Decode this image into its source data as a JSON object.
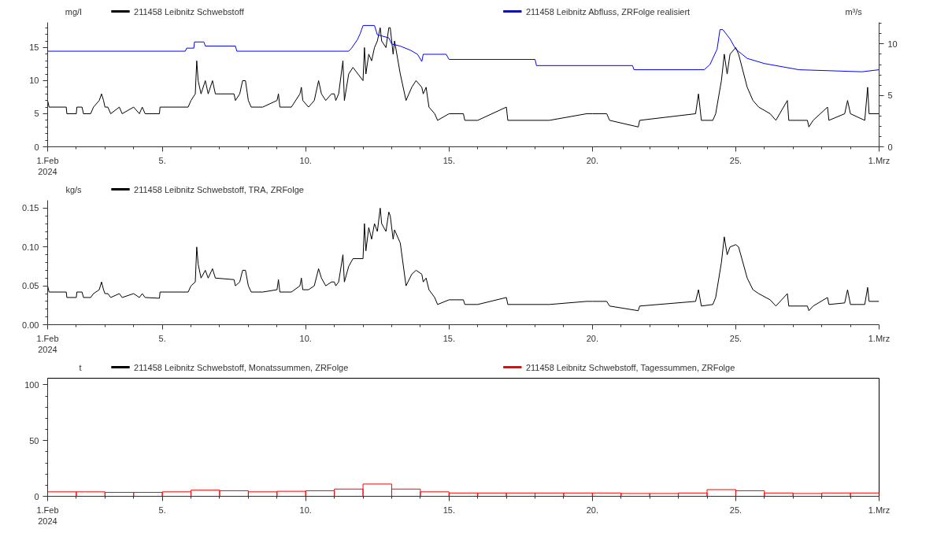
{
  "chart_data": [
    {
      "type": "line",
      "ylabel": "mg/l",
      "y2label": "m³/s",
      "legend": "top",
      "xlim": [
        "2024-02-01",
        "2024-03-01"
      ],
      "ylim": [
        0,
        18.8
      ],
      "y2lim": [
        0,
        12.1
      ],
      "xticks": [
        {
          "value": "2024-02-01",
          "label": "1.Feb\n2024"
        },
        {
          "value": "2024-02-02",
          "label": null
        },
        {
          "value": "2024-02-03",
          "label": null
        },
        {
          "value": "2024-02-04",
          "label": null
        },
        {
          "value": "2024-02-05",
          "label": "5."
        },
        {
          "value": "2024-02-06",
          "label": null
        },
        {
          "value": "2024-02-07",
          "label": null
        },
        {
          "value": "2024-02-08",
          "label": null
        },
        {
          "value": "2024-02-09",
          "label": null
        },
        {
          "value": "2024-02-10",
          "label": "10."
        },
        {
          "value": "2024-02-11",
          "label": null
        },
        {
          "value": "2024-02-12",
          "label": null
        },
        {
          "value": "2024-02-13",
          "label": null
        },
        {
          "value": "2024-02-14",
          "label": null
        },
        {
          "value": "2024-02-15",
          "label": "15."
        },
        {
          "value": "2024-02-16",
          "label": null
        },
        {
          "value": "2024-02-17",
          "label": null
        },
        {
          "value": "2024-02-18",
          "label": null
        },
        {
          "value": "2024-02-19",
          "label": null
        },
        {
          "value": "2024-02-20",
          "label": "20."
        },
        {
          "value": "2024-02-21",
          "label": null
        },
        {
          "value": "2024-02-22",
          "label": null
        },
        {
          "value": "2024-02-23",
          "label": null
        },
        {
          "value": "2024-02-24",
          "label": null
        },
        {
          "value": "2024-02-25",
          "label": "25."
        },
        {
          "value": "2024-02-26",
          "label": null
        },
        {
          "value": "2024-02-27",
          "label": null
        },
        {
          "value": "2024-02-28",
          "label": null
        },
        {
          "value": "2024-02-29",
          "label": null
        },
        {
          "value": "2024-03-01",
          "label": "1.Mrz"
        }
      ],
      "yticks": [
        0,
        {
          "value": 1,
          "label": null
        },
        {
          "value": 2,
          "label": null
        },
        {
          "value": 3,
          "label": null
        },
        {
          "value": 4,
          "label": null
        },
        5,
        {
          "value": 6,
          "label": null
        },
        {
          "value": 7,
          "label": null
        },
        {
          "value": 8,
          "label": null
        },
        {
          "value": 9,
          "label": null
        },
        10,
        {
          "value": 11,
          "label": null
        },
        {
          "value": 12,
          "label": null
        },
        {
          "value": 13,
          "label": null
        },
        {
          "value": 14,
          "label": null
        },
        15,
        {
          "value": 16,
          "label": null
        },
        {
          "value": 17,
          "label": null
        },
        {
          "value": 18,
          "label": null
        }
      ],
      "y2ticks": [
        0,
        {
          "value": 1,
          "label": null
        },
        {
          "value": 2,
          "label": null
        },
        {
          "value": 3,
          "label": null
        },
        {
          "value": 4,
          "label": null
        },
        5,
        {
          "value": 6,
          "label": null
        },
        {
          "value": 7,
          "label": null
        },
        {
          "value": 8,
          "label": null
        },
        {
          "value": 9,
          "label": null
        },
        10,
        {
          "value": 11,
          "label": null
        },
        {
          "value": 12,
          "label": null
        }
      ],
      "series": [
        {
          "name": "211458 Leibnitz  Schwebstoff",
          "color": "#000000",
          "x": [
            "2024-02-01T00:00",
            "2024-02-01T01:12",
            "2024-02-01T15:36",
            "2024-02-01T16:05",
            "2024-02-02T00:00",
            "2024-02-02T00:29",
            "2024-02-02T04:48",
            "2024-02-02T06:00",
            "2024-02-02T12:00",
            "2024-02-02T14:24",
            "2024-02-02T19:12",
            "2024-02-02T21:07",
            "2024-02-02T22:48",
            "2024-02-03T00:00",
            "2024-02-03T02:24",
            "2024-02-03T04:48",
            "2024-02-03T12:00",
            "2024-02-03T14:24",
            "2024-02-04T00:00",
            "2024-02-04T04:48",
            "2024-02-04T07:12",
            "2024-02-04T09:36",
            "2024-02-04T21:36",
            "2024-02-04T22:05",
            "2024-02-05T21:36",
            "2024-02-06T00:00",
            "2024-02-06T03:36",
            "2024-02-06T04:48",
            "2024-02-06T06:00",
            "2024-02-06T08:24",
            "2024-02-06T12:00",
            "2024-02-06T14:24",
            "2024-02-06T18:00",
            "2024-02-06T20:24",
            "2024-02-07T12:00",
            "2024-02-07T13:12",
            "2024-02-07T16:48",
            "2024-02-07T19:12",
            "2024-02-07T21:36",
            "2024-02-08T00:00",
            "2024-02-08T02:24",
            "2024-02-08T12:00",
            "2024-02-09T00:00",
            "2024-02-09T01:12",
            "2024-02-09T02:24",
            "2024-02-09T12:00",
            "2024-02-09T19:12",
            "2024-02-09T20:24",
            "2024-02-09T21:36",
            "2024-02-10T02:24",
            "2024-02-10T07:12",
            "2024-02-10T10:48",
            "2024-02-10T13:12",
            "2024-02-10T16:48",
            "2024-02-10T21:36",
            "2024-02-11T00:00",
            "2024-02-11T01:12",
            "2024-02-11T03:36",
            "2024-02-11T07:12",
            "2024-02-11T08:24",
            "2024-02-11T12:00",
            "2024-02-11T15:36",
            "2024-02-12T00:00",
            "2024-02-12T01:12",
            "2024-02-12T02:24",
            "2024-02-12T04:48",
            "2024-02-12T07:12",
            "2024-02-12T09:36",
            "2024-02-12T12:00",
            "2024-02-12T14:24",
            "2024-02-12T15:36",
            "2024-02-12T19:12",
            "2024-02-12T21:36",
            "2024-02-12T22:48",
            "2024-02-13T01:12",
            "2024-02-13T02:24",
            "2024-02-13T07:12",
            "2024-02-13T12:00",
            "2024-02-13T16:48",
            "2024-02-13T20:24",
            "2024-02-14T01:12",
            "2024-02-14T02:24",
            "2024-02-14T04:48",
            "2024-02-14T07:12",
            "2024-02-14T12:00",
            "2024-02-14T14:24",
            "2024-02-15T00:00",
            "2024-02-15T12:00",
            "2024-02-15T13:12",
            "2024-02-16T00:00",
            "2024-02-17T00:00",
            "2024-02-17T01:12",
            "2024-02-18T12:00",
            "2024-02-19T19:12",
            "2024-02-20T00:00",
            "2024-02-20T12:00",
            "2024-02-20T14:24",
            "2024-02-21T14:24",
            "2024-02-21T15:36",
            "2024-02-23T14:24",
            "2024-02-23T16:48",
            "2024-02-23T19:12",
            "2024-02-24T04:48",
            "2024-02-24T07:12",
            "2024-02-24T12:00",
            "2024-02-24T14:24",
            "2024-02-24T16:48",
            "2024-02-24T19:12",
            "2024-02-25T00:00",
            "2024-02-25T02:24",
            "2024-02-25T09:36",
            "2024-02-25T14:24",
            "2024-02-25T19:12",
            "2024-02-26T04:48",
            "2024-02-26T09:36",
            "2024-02-26T19:12",
            "2024-02-26T20:24",
            "2024-02-27T12:00",
            "2024-02-27T13:12",
            "2024-02-27T16:48",
            "2024-02-28T04:48",
            "2024-02-28T06:00",
            "2024-02-28T19:12",
            "2024-02-28T21:36",
            "2024-02-29T00:00",
            "2024-02-29T12:00",
            "2024-02-29T14:24",
            "2024-02-29T15:36",
            "2024-03-01T00:00"
          ],
          "values": [
            7,
            6,
            6,
            5,
            5,
            6,
            6,
            5,
            5,
            6,
            7,
            8,
            7,
            6,
            6,
            5,
            6,
            5,
            6,
            5,
            6,
            5,
            5,
            6,
            6,
            7,
            8,
            13,
            10,
            8,
            10,
            8,
            10,
            8,
            8,
            7,
            8,
            10,
            10,
            7,
            6,
            6,
            7,
            8,
            6,
            6,
            8,
            9,
            7,
            6,
            7,
            10,
            8,
            7,
            8,
            8,
            7,
            8,
            13,
            7,
            11,
            12,
            10,
            15,
            11,
            14,
            13,
            15,
            16,
            18,
            16,
            15,
            18,
            18,
            14,
            16,
            11,
            7,
            9,
            10,
            9,
            8,
            9,
            6,
            5,
            4,
            5,
            5,
            4,
            4,
            6,
            4,
            4,
            5,
            5,
            5,
            4,
            3,
            4,
            5,
            8,
            4,
            4,
            5,
            10,
            14,
            11,
            14,
            15,
            14,
            9,
            7,
            6,
            5,
            4,
            7,
            4,
            4,
            3,
            4,
            6,
            4,
            5,
            7,
            5,
            4,
            9,
            5,
            5
          ]
        },
        {
          "name": "211458 Leibnitz  Abfluss, ZRFolge realisiert",
          "color": "#0000ff",
          "axis": "y2",
          "x": [
            "2024-02-01T00:00",
            "2024-02-05T19:12",
            "2024-02-05T20:24",
            "2024-02-06T02:24",
            "2024-02-06T02:53",
            "2024-02-06T10:48",
            "2024-02-06T12:00",
            "2024-02-07T13:12",
            "2024-02-07T14:24",
            "2024-02-11T12:00",
            "2024-02-11T14:24",
            "2024-02-11T19:12",
            "2024-02-11T21:36",
            "2024-02-12T00:00",
            "2024-02-12T09:36",
            "2024-02-12T12:00",
            "2024-02-12T21:36",
            "2024-02-13T00:00",
            "2024-02-13T07:12",
            "2024-02-13T15:36",
            "2024-02-13T21:36",
            "2024-02-14T01:12",
            "2024-02-14T02:24",
            "2024-02-14T21:36",
            "2024-02-15T00:00",
            "2024-02-18T00:00",
            "2024-02-18T01:12",
            "2024-02-21T09:36",
            "2024-02-21T10:48",
            "2024-02-23T21:36",
            "2024-02-24T02:24",
            "2024-02-24T08:24",
            "2024-02-24T10:48",
            "2024-02-24T13:12",
            "2024-02-24T19:12",
            "2024-02-25T00:00",
            "2024-02-25T09:36",
            "2024-02-26T00:00",
            "2024-02-27T04:48",
            "2024-02-29T09:36",
            "2024-03-01T00:00"
          ],
          "values": [
            9.3,
            9.3,
            9.6,
            9.6,
            10.2,
            10.2,
            9.8,
            9.8,
            9.3,
            9.3,
            9.6,
            10.4,
            11.0,
            11.8,
            11.8,
            10.9,
            10.6,
            10.0,
            9.8,
            9.4,
            9.0,
            8.3,
            9.0,
            9.0,
            8.5,
            8.5,
            7.9,
            7.9,
            7.5,
            7.5,
            8.0,
            9.5,
            11.4,
            11.4,
            10.5,
            9.5,
            8.6,
            8.1,
            7.5,
            7.3,
            7.5
          ]
        }
      ]
    },
    {
      "type": "line",
      "ylabel": "kg/s",
      "legend": "top",
      "xlim": [
        "2024-02-01",
        "2024-03-01"
      ],
      "ylim": [
        0,
        0.16
      ],
      "xticks": [
        {
          "value": "2024-02-01",
          "label": "1.Feb\n2024"
        },
        {
          "value": "2024-02-02",
          "label": null
        },
        {
          "value": "2024-02-03",
          "label": null
        },
        {
          "value": "2024-02-04",
          "label": null
        },
        {
          "value": "2024-02-05",
          "label": "5."
        },
        {
          "value": "2024-02-06",
          "label": null
        },
        {
          "value": "2024-02-07",
          "label": null
        },
        {
          "value": "2024-02-08",
          "label": null
        },
        {
          "value": "2024-02-09",
          "label": null
        },
        {
          "value": "2024-02-10",
          "label": "10."
        },
        {
          "value": "2024-02-11",
          "label": null
        },
        {
          "value": "2024-02-12",
          "label": null
        },
        {
          "value": "2024-02-13",
          "label": null
        },
        {
          "value": "2024-02-14",
          "label": null
        },
        {
          "value": "2024-02-15",
          "label": "15."
        },
        {
          "value": "2024-02-16",
          "label": null
        },
        {
          "value": "2024-02-17",
          "label": null
        },
        {
          "value": "2024-02-18",
          "label": null
        },
        {
          "value": "2024-02-19",
          "label": null
        },
        {
          "value": "2024-02-20",
          "label": "20."
        },
        {
          "value": "2024-02-21",
          "label": null
        },
        {
          "value": "2024-02-22",
          "label": null
        },
        {
          "value": "2024-02-23",
          "label": null
        },
        {
          "value": "2024-02-24",
          "label": null
        },
        {
          "value": "2024-02-25",
          "label": "25."
        },
        {
          "value": "2024-02-26",
          "label": null
        },
        {
          "value": "2024-02-27",
          "label": null
        },
        {
          "value": "2024-02-28",
          "label": null
        },
        {
          "value": "2024-02-29",
          "label": null
        },
        {
          "value": "2024-03-01",
          "label": "1.Mrz"
        }
      ],
      "yticks": [
        {
          "value": 0,
          "label": "0.00"
        },
        {
          "value": 0.01,
          "label": null
        },
        {
          "value": 0.02,
          "label": null
        },
        {
          "value": 0.03,
          "label": null
        },
        {
          "value": 0.04,
          "label": null
        },
        {
          "value": 0.05,
          "label": "0.05"
        },
        {
          "value": 0.06,
          "label": null
        },
        {
          "value": 0.07,
          "label": null
        },
        {
          "value": 0.08,
          "label": null
        },
        {
          "value": 0.09,
          "label": null
        },
        {
          "value": 0.1,
          "label": "0.10"
        },
        {
          "value": 0.11,
          "label": null
        },
        {
          "value": 0.12,
          "label": null
        },
        {
          "value": 0.13,
          "label": null
        },
        {
          "value": 0.14,
          "label": null
        },
        {
          "value": 0.15,
          "label": "0.15"
        }
      ],
      "series": [
        {
          "name": "211458 Leibnitz  Schwebstoff,  TRA, ZRFolge",
          "color": "#000000",
          "x": [
            "2024-02-01T00:00",
            "2024-02-01T01:12",
            "2024-02-01T15:36",
            "2024-02-01T16:05",
            "2024-02-02T00:00",
            "2024-02-02T00:29",
            "2024-02-02T04:48",
            "2024-02-02T06:00",
            "2024-02-02T12:00",
            "2024-02-02T14:24",
            "2024-02-02T19:12",
            "2024-02-02T21:07",
            "2024-02-02T22:48",
            "2024-02-03T00:00",
            "2024-02-03T02:24",
            "2024-02-03T04:48",
            "2024-02-03T12:00",
            "2024-02-03T14:24",
            "2024-02-04T00:00",
            "2024-02-04T04:48",
            "2024-02-04T07:12",
            "2024-02-04T09:36",
            "2024-02-04T21:36",
            "2024-02-04T22:05",
            "2024-02-05T21:36",
            "2024-02-06T00:00",
            "2024-02-06T03:36",
            "2024-02-06T04:48",
            "2024-02-06T06:00",
            "2024-02-06T08:24",
            "2024-02-06T12:00",
            "2024-02-06T14:24",
            "2024-02-06T18:00",
            "2024-02-06T20:24",
            "2024-02-07T12:00",
            "2024-02-07T13:12",
            "2024-02-07T16:48",
            "2024-02-07T19:12",
            "2024-02-07T21:36",
            "2024-02-08T00:00",
            "2024-02-08T02:24",
            "2024-02-08T12:00",
            "2024-02-09T00:00",
            "2024-02-09T01:12",
            "2024-02-09T02:24",
            "2024-02-09T12:00",
            "2024-02-09T19:12",
            "2024-02-09T20:24",
            "2024-02-09T21:36",
            "2024-02-10T02:24",
            "2024-02-10T07:12",
            "2024-02-10T10:48",
            "2024-02-10T13:12",
            "2024-02-10T16:48",
            "2024-02-10T21:36",
            "2024-02-11T00:00",
            "2024-02-11T01:12",
            "2024-02-11T03:36",
            "2024-02-11T07:12",
            "2024-02-11T08:24",
            "2024-02-11T12:00",
            "2024-02-11T15:36",
            "2024-02-12T00:00",
            "2024-02-12T01:12",
            "2024-02-12T02:24",
            "2024-02-12T04:48",
            "2024-02-12T07:12",
            "2024-02-12T09:36",
            "2024-02-12T12:00",
            "2024-02-12T14:24",
            "2024-02-12T15:36",
            "2024-02-12T19:12",
            "2024-02-12T21:36",
            "2024-02-12T22:48",
            "2024-02-13T01:12",
            "2024-02-13T02:24",
            "2024-02-13T07:12",
            "2024-02-13T12:00",
            "2024-02-13T16:48",
            "2024-02-13T20:24",
            "2024-02-14T01:12",
            "2024-02-14T02:24",
            "2024-02-14T04:48",
            "2024-02-14T07:12",
            "2024-02-14T12:00",
            "2024-02-14T14:24",
            "2024-02-15T00:00",
            "2024-02-15T12:00",
            "2024-02-15T13:12",
            "2024-02-16T00:00",
            "2024-02-17T00:00",
            "2024-02-17T01:12",
            "2024-02-18T12:00",
            "2024-02-19T19:12",
            "2024-02-20T00:00",
            "2024-02-20T12:00",
            "2024-02-20T14:24",
            "2024-02-21T14:24",
            "2024-02-21T15:36",
            "2024-02-23T14:24",
            "2024-02-23T16:48",
            "2024-02-23T19:12",
            "2024-02-24T04:48",
            "2024-02-24T07:12",
            "2024-02-24T12:00",
            "2024-02-24T14:24",
            "2024-02-24T16:48",
            "2024-02-24T19:12",
            "2024-02-25T00:00",
            "2024-02-25T02:24",
            "2024-02-25T09:36",
            "2024-02-25T14:24",
            "2024-02-25T19:12",
            "2024-02-26T04:48",
            "2024-02-26T09:36",
            "2024-02-26T19:12",
            "2024-02-26T20:24",
            "2024-02-27T12:00",
            "2024-02-27T13:12",
            "2024-02-27T16:48",
            "2024-02-28T04:48",
            "2024-02-28T06:00",
            "2024-02-28T19:12",
            "2024-02-28T21:36",
            "2024-02-29T00:00",
            "2024-02-29T12:00",
            "2024-02-29T14:24",
            "2024-02-29T15:36",
            "2024-03-01T00:00"
          ],
          "values": [
            0.05,
            0.042,
            0.042,
            0.035,
            0.035,
            0.042,
            0.042,
            0.035,
            0.035,
            0.04,
            0.045,
            0.055,
            0.045,
            0.04,
            0.04,
            0.035,
            0.04,
            0.035,
            0.04,
            0.035,
            0.04,
            0.035,
            0.034,
            0.042,
            0.042,
            0.05,
            0.055,
            0.1,
            0.078,
            0.06,
            0.07,
            0.06,
            0.072,
            0.06,
            0.058,
            0.05,
            0.055,
            0.07,
            0.07,
            0.05,
            0.042,
            0.042,
            0.045,
            0.058,
            0.042,
            0.042,
            0.05,
            0.06,
            0.045,
            0.045,
            0.05,
            0.072,
            0.06,
            0.05,
            0.055,
            0.055,
            0.05,
            0.055,
            0.09,
            0.055,
            0.075,
            0.085,
            0.085,
            0.13,
            0.095,
            0.125,
            0.11,
            0.13,
            0.12,
            0.15,
            0.13,
            0.12,
            0.145,
            0.14,
            0.11,
            0.122,
            0.105,
            0.05,
            0.065,
            0.07,
            0.065,
            0.055,
            0.06,
            0.045,
            0.035,
            0.026,
            0.032,
            0.032,
            0.026,
            0.026,
            0.035,
            0.026,
            0.026,
            0.03,
            0.03,
            0.03,
            0.024,
            0.018,
            0.024,
            0.03,
            0.045,
            0.024,
            0.026,
            0.035,
            0.08,
            0.113,
            0.09,
            0.1,
            0.103,
            0.1,
            0.06,
            0.045,
            0.04,
            0.032,
            0.024,
            0.04,
            0.024,
            0.024,
            0.018,
            0.024,
            0.035,
            0.026,
            0.028,
            0.045,
            0.026,
            0.026,
            0.048,
            0.03,
            0.03
          ]
        }
      ]
    },
    {
      "type": "bar",
      "ylabel": "t",
      "legend": "top",
      "xlim": [
        "2024-02-01",
        "2024-03-01"
      ],
      "ylim": [
        0,
        106
      ],
      "xticks": [
        {
          "value": "2024-02-01",
          "label": "1.Feb\n2024"
        },
        {
          "value": "2024-02-02",
          "label": null
        },
        {
          "value": "2024-02-03",
          "label": null
        },
        {
          "value": "2024-02-04",
          "label": null
        },
        {
          "value": "2024-02-05",
          "label": "5."
        },
        {
          "value": "2024-02-06",
          "label": null
        },
        {
          "value": "2024-02-07",
          "label": null
        },
        {
          "value": "2024-02-08",
          "label": null
        },
        {
          "value": "2024-02-09",
          "label": null
        },
        {
          "value": "2024-02-10",
          "label": "10."
        },
        {
          "value": "2024-02-11",
          "label": null
        },
        {
          "value": "2024-02-12",
          "label": null
        },
        {
          "value": "2024-02-13",
          "label": null
        },
        {
          "value": "2024-02-14",
          "label": null
        },
        {
          "value": "2024-02-15",
          "label": "15."
        },
        {
          "value": "2024-02-16",
          "label": null
        },
        {
          "value": "2024-02-17",
          "label": null
        },
        {
          "value": "2024-02-18",
          "label": null
        },
        {
          "value": "2024-02-19",
          "label": null
        },
        {
          "value": "2024-02-20",
          "label": "20."
        },
        {
          "value": "2024-02-21",
          "label": null
        },
        {
          "value": "2024-02-22",
          "label": null
        },
        {
          "value": "2024-02-23",
          "label": null
        },
        {
          "value": "2024-02-24",
          "label": null
        },
        {
          "value": "2024-02-25",
          "label": "25."
        },
        {
          "value": "2024-02-26",
          "label": null
        },
        {
          "value": "2024-02-27",
          "label": null
        },
        {
          "value": "2024-02-28",
          "label": null
        },
        {
          "value": "2024-02-29",
          "label": null
        },
        {
          "value": "2024-03-01",
          "label": "1.Mrz"
        }
      ],
      "yticks": [
        0,
        {
          "value": 10,
          "label": null
        },
        {
          "value": 20,
          "label": null
        },
        {
          "value": 30,
          "label": null
        },
        {
          "value": 40,
          "label": null
        },
        50,
        {
          "value": 60,
          "label": null
        },
        {
          "value": 70,
          "label": null
        },
        {
          "value": 80,
          "label": null
        },
        {
          "value": 90,
          "label": null
        },
        100
      ],
      "series": [
        {
          "name": "211458 Leibnitz  Schwebstoff, Monatssummen, ZRFolge",
          "color": "#000000",
          "values": [
            null
          ]
        },
        {
          "name": "211458 Leibnitz  Schwebstoff, Tagessummen, ZRFolge",
          "color": "#ff0000",
          "x": [
            "2024-02-01",
            "2024-02-02",
            "2024-02-03",
            "2024-02-04",
            "2024-02-05",
            "2024-02-06",
            "2024-02-07",
            "2024-02-08",
            "2024-02-09",
            "2024-02-10",
            "2024-02-11",
            "2024-02-12",
            "2024-02-13",
            "2024-02-14",
            "2024-02-15",
            "2024-02-16",
            "2024-02-17",
            "2024-02-18",
            "2024-02-19",
            "2024-02-20",
            "2024-02-21",
            "2024-02-22",
            "2024-02-23",
            "2024-02-24",
            "2024-02-25",
            "2024-02-26",
            "2024-02-27",
            "2024-02-28",
            "2024-02-29"
          ],
          "values": [
            4,
            4,
            3.5,
            3.5,
            4,
            5.5,
            5,
            4,
            4.5,
            5,
            6.5,
            11,
            6.5,
            4,
            3,
            3,
            3,
            3,
            3,
            3,
            2.5,
            2.5,
            3,
            6,
            5,
            3,
            2.5,
            3,
            3
          ]
        }
      ]
    }
  ]
}
